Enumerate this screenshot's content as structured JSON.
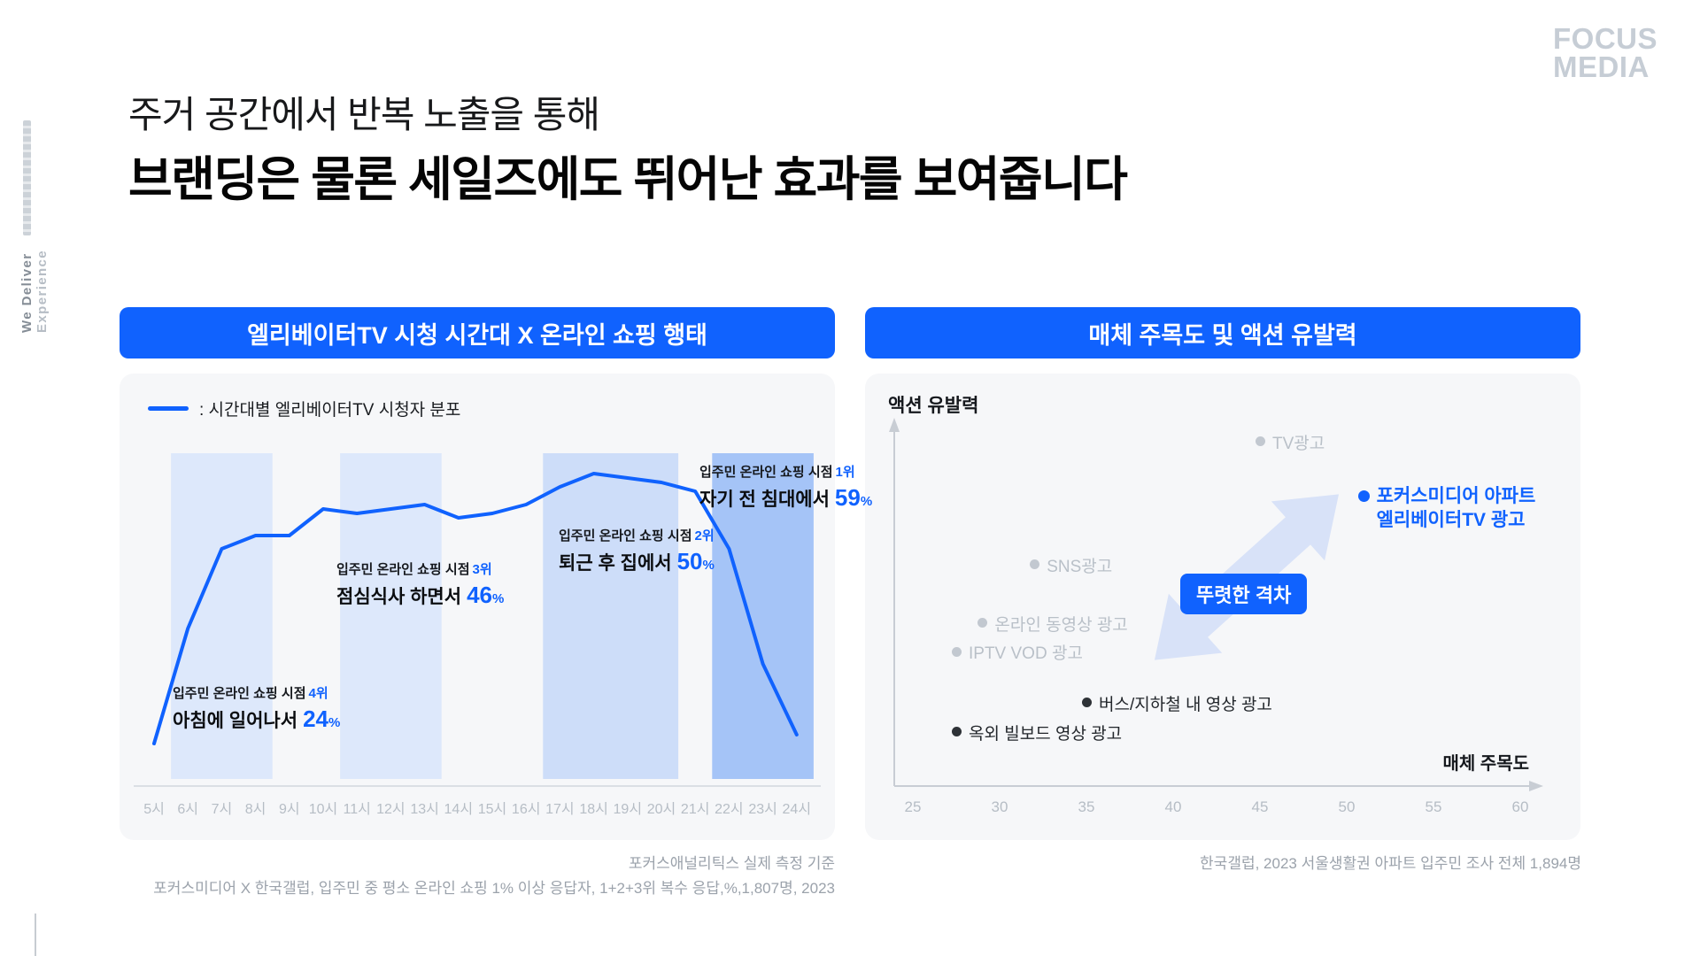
{
  "brand": {
    "line1": "FOCUS",
    "line2": "MEDIA"
  },
  "side_rail": {
    "bottom_text": "We Deliver",
    "top_text": "Experience"
  },
  "title": {
    "line1": "주거 공간에서 반복 노출을 통해",
    "line2": "브랜딩은 물론 세일즈에도 뛰어난 효과를 보여줍니다"
  },
  "left_panel": {
    "header": "엘리베이터TV 시청 시간대 X 온라인 쇼핑 행태",
    "legend": ": 시간대별 엘리베이터TV 시청자 분포",
    "annotations": [
      {
        "prefix": "입주민 온라인 쇼핑 시점",
        "rank": "4위",
        "label": "아침에 일어나서",
        "value": "24",
        "unit": "%"
      },
      {
        "prefix": "입주민 온라인 쇼핑 시점",
        "rank": "3위",
        "label": "점심식사 하면서",
        "value": "46",
        "unit": "%"
      },
      {
        "prefix": "입주민 온라인 쇼핑 시점",
        "rank": "2위",
        "label": "퇴근 후 집에서",
        "value": "50",
        "unit": "%"
      },
      {
        "prefix": "입주민 온라인 쇼핑 시점",
        "rank": "1위",
        "label": "자기 전 침대에서",
        "value": "59",
        "unit": "%"
      }
    ],
    "footnote1": "포커스애널리틱스 실제 측정 기준",
    "footnote2": "포커스미디어 X 한국갤럽, 입주민 중 평소 온라인 쇼핑 1% 이상 응답자, 1+2+3위 복수 응답,%,1,807명, 2023"
  },
  "right_panel": {
    "header": "매체 주목도 및 액션 유발력",
    "ylabel": "액션 유발력",
    "xlabel": "매체 주목도",
    "gap_badge": "뚜렷한 격차",
    "footnote": "한국갤럽, 2023 서울생활권 아파트 입주민 조사 전체 1,894명"
  },
  "colors": {
    "accent": "#1062fe",
    "panel_bg": "#f6f7f9",
    "band_light": "#dde8fb",
    "band_medium": "#cdddf9",
    "band_strong": "#a5c4f7",
    "point_gray": "#c2c8d0",
    "point_dark": "#2e3237",
    "label_gray": "#b9c0c8",
    "label_dark": "#22262b",
    "axis_gray": "#c8cdd4",
    "footnote_gray": "#9ba2ab",
    "logo_gray": "#c6cdd5"
  },
  "chart_data": [
    {
      "type": "line",
      "title": "엘리베이터TV 시청 시간대 X 온라인 쇼핑 행태",
      "legend": ": 시간대별 엘리베이터TV 시청자 분포",
      "categories": [
        "5시",
        "6시",
        "7시",
        "8시",
        "9시",
        "10시",
        "11시",
        "12시",
        "13시",
        "14시",
        "15시",
        "16시",
        "17시",
        "18시",
        "19시",
        "20시",
        "21시",
        "22시",
        "23시",
        "24시"
      ],
      "series": [
        {
          "name": "시간대별 엘리베이터TV 시청자 분포",
          "values": [
            8,
            34,
            52,
            55,
            55,
            61,
            60,
            61,
            62,
            59,
            60,
            62,
            66,
            69,
            68,
            67,
            65,
            52,
            26,
            10
          ]
        }
      ],
      "ylim": [
        0,
        75
      ],
      "grid": false,
      "legend_position": "top-left",
      "highlight_bands": [
        {
          "from": "6시",
          "to": "8시",
          "tone": "light"
        },
        {
          "from": "11시",
          "to": "13시",
          "tone": "light"
        },
        {
          "from": "17시",
          "to": "20시",
          "tone": "medium"
        },
        {
          "from": "22시",
          "to": "24시",
          "tone": "strong"
        }
      ]
    },
    {
      "type": "scatter",
      "title": "매체 주목도 및 액션 유발력",
      "xlabel": "매체 주목도",
      "ylabel": "액션 유발력",
      "xlim": [
        23,
        62
      ],
      "x_ticks": [
        25,
        30,
        35,
        40,
        45,
        50,
        55,
        60
      ],
      "points": [
        {
          "label_lines": [
            "TV광고"
          ],
          "x": 45,
          "y": 95,
          "tone": "gray"
        },
        {
          "label_lines": [
            "SNS광고"
          ],
          "x": 32,
          "y": 61,
          "tone": "gray"
        },
        {
          "label_lines": [
            "온라인 동영상 광고"
          ],
          "x": 29,
          "y": 45,
          "tone": "gray"
        },
        {
          "label_lines": [
            "IPTV VOD 광고"
          ],
          "x": 27.5,
          "y": 37,
          "tone": "gray"
        },
        {
          "label_lines": [
            "버스/지하철 내 영상 광고"
          ],
          "x": 35,
          "y": 23,
          "tone": "dark"
        },
        {
          "label_lines": [
            "옥외 빌보드 영상 광고"
          ],
          "x": 27.5,
          "y": 15,
          "tone": "dark"
        },
        {
          "label_lines": [
            "포커스미디어 아파트",
            "엘리베이터TV 광고"
          ],
          "x": 51,
          "y": 80,
          "tone": "blue"
        }
      ],
      "annotation": "뚜렷한 격차"
    }
  ]
}
